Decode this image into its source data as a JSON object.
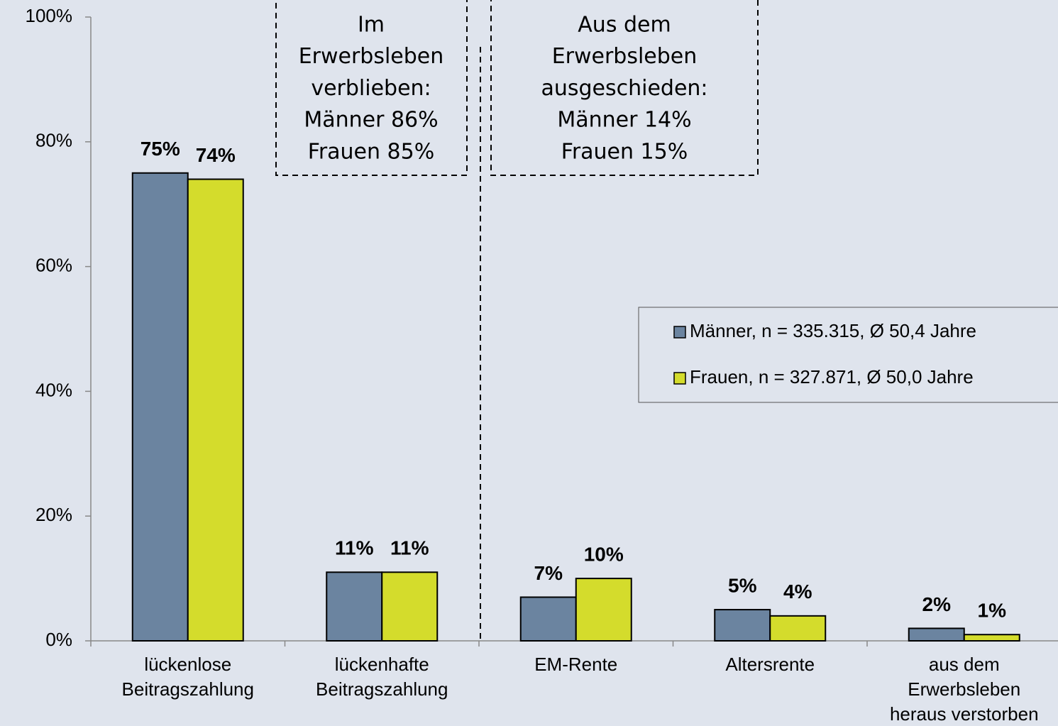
{
  "chart_data": {
    "type": "bar",
    "categories": [
      [
        "lückenlose",
        "Beitragszahlung"
      ],
      [
        "lückenhafte",
        "Beitragszahlung"
      ],
      [
        "EM-Rente"
      ],
      [
        "Altersrente"
      ],
      [
        "aus dem",
        "Erwerbsleben",
        "heraus verstorben"
      ]
    ],
    "series": [
      {
        "name": "Männer, n = 335.315, Ø 50,4 Jahre",
        "color": "#6b84a0",
        "values": [
          75,
          11,
          7,
          5,
          2
        ],
        "value_labels": [
          "75%",
          "11%",
          "7%",
          "5%",
          "2%"
        ]
      },
      {
        "name": "Frauen, n = 327.871, Ø 50,0 Jahre",
        "color": "#d4dc2c",
        "values": [
          74,
          11,
          10,
          4,
          1
        ],
        "value_labels": [
          "74%",
          "11%",
          "10%",
          "4%",
          "1%"
        ]
      }
    ],
    "ylim": [
      0,
      100
    ],
    "yticks": [
      {
        "value": 0,
        "label": "0%"
      },
      {
        "value": 20,
        "label": "20%"
      },
      {
        "value": 40,
        "label": "40%"
      },
      {
        "value": 60,
        "label": "60%"
      },
      {
        "value": 80,
        "label": "80%"
      },
      {
        "value": 100,
        "label": "100%"
      }
    ],
    "legend": "right",
    "annotations": [
      [
        "Im",
        "Erwerbsleben",
        "verblieben:",
        "Männer 86%",
        "Frauen 85%"
      ],
      [
        "Aus dem",
        "Erwerbsleben",
        "ausgeschieden:",
        "Männer 14%",
        "Frauen 15%"
      ]
    ]
  }
}
